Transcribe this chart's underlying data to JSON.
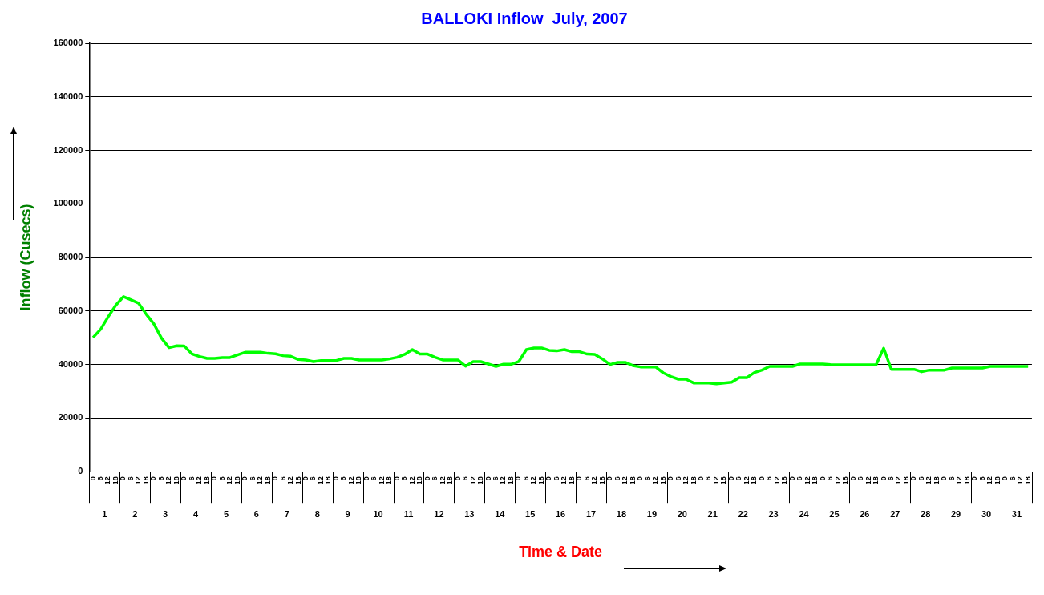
{
  "chart_data": {
    "type": "line",
    "title": "BALLOKI Inflow  July, 2007",
    "xlabel": "Time & Date",
    "ylabel": "Inflow (Cusecs)",
    "categories": [
      "0",
      "6",
      "12",
      "18",
      "0",
      "6",
      "12",
      "18",
      "0",
      "6",
      "12",
      "18",
      "0",
      "6",
      "12",
      "18",
      "0",
      "6",
      "12",
      "18",
      "0",
      "6",
      "12",
      "18",
      "0",
      "6",
      "12",
      "18",
      "0",
      "6",
      "12",
      "18",
      "0",
      "6",
      "12",
      "18",
      "0",
      "6",
      "12",
      "18",
      "0",
      "6",
      "12",
      "18",
      "0",
      "6",
      "12",
      "18",
      "0",
      "6",
      "12",
      "18",
      "0",
      "6",
      "12",
      "18",
      "0",
      "6",
      "12",
      "18",
      "0",
      "6",
      "12",
      "18",
      "0",
      "6",
      "12",
      "18",
      "0",
      "6",
      "12",
      "18",
      "0",
      "6",
      "12",
      "18",
      "0",
      "6",
      "12",
      "18",
      "0",
      "6",
      "12",
      "18",
      "0",
      "6",
      "12",
      "18",
      "0",
      "6",
      "12",
      "18",
      "0",
      "6",
      "12",
      "18",
      "0",
      "6",
      "12",
      "18",
      "0",
      "6",
      "12",
      "18",
      "0",
      "6",
      "12",
      "18",
      "0",
      "6",
      "12",
      "18",
      "0",
      "6",
      "12",
      "18",
      "0",
      "6",
      "12",
      "18",
      "0",
      "6",
      "12",
      "18"
    ],
    "series": [
      {
        "color": "#00ff00",
        "values": [
          50100,
          53200,
          57900,
          62200,
          65400,
          64200,
          62900,
          58800,
          55200,
          49900,
          46300,
          47000,
          46900,
          44000,
          43000,
          42300,
          42300,
          42600,
          42600,
          43600,
          44600,
          44600,
          44600,
          44200,
          44000,
          43300,
          43100,
          41900,
          41700,
          41100,
          41500,
          41500,
          41500,
          42300,
          42300,
          41700,
          41700,
          41700,
          41700,
          42100,
          42700,
          43800,
          45600,
          43900,
          43900,
          42700,
          41700,
          41700,
          41700,
          39400,
          41100,
          41100,
          40200,
          39300,
          40100,
          40100,
          41100,
          45600,
          46200,
          46200,
          45300,
          45100,
          45600,
          44800,
          44800,
          43900,
          43800,
          42100,
          40000,
          40800,
          40800,
          39600,
          39100,
          39100,
          39100,
          36900,
          35500,
          34500,
          34500,
          33100,
          33100,
          33100,
          32800,
          33100,
          33400,
          35100,
          35100,
          37000,
          37900,
          39300,
          39300,
          39300,
          39300,
          40200,
          40200,
          40200,
          40200,
          40000,
          39900,
          39900,
          39900,
          39900,
          39900,
          39900,
          46100,
          38200,
          38200,
          38200,
          38200,
          37300,
          37900,
          37900,
          37900,
          38700,
          38700,
          38700,
          38700,
          38700,
          39300,
          39300,
          39300,
          39300,
          39300,
          39300
        ]
      }
    ],
    "ylim": [
      0,
      160000
    ],
    "yticks": [
      0,
      20000,
      40000,
      60000,
      80000,
      100000,
      120000,
      140000,
      160000
    ],
    "x2lim": [
      0,
      31
    ],
    "x2ticks": [
      {
        "value": 0.5,
        "label": "1"
      },
      {
        "value": 1.5,
        "label": "2"
      },
      {
        "value": 2.5,
        "label": "3"
      },
      {
        "value": 3.5,
        "label": "4"
      },
      {
        "value": 4.5,
        "label": "5"
      },
      {
        "value": 5.5,
        "label": "6"
      },
      {
        "value": 6.5,
        "label": "7"
      },
      {
        "value": 7.5,
        "label": "8"
      },
      {
        "value": 8.5,
        "label": "9"
      },
      {
        "value": 9.5,
        "label": "10"
      },
      {
        "value": 10.5,
        "label": "11"
      },
      {
        "value": 11.5,
        "label": "12"
      },
      {
        "value": 12.5,
        "label": "13"
      },
      {
        "value": 13.5,
        "label": "14"
      },
      {
        "value": 14.5,
        "label": "15"
      },
      {
        "value": 15.5,
        "label": "16"
      },
      {
        "value": 16.5,
        "label": "17"
      },
      {
        "value": 17.5,
        "label": "18"
      },
      {
        "value": 18.5,
        "label": "19"
      },
      {
        "value": 19.5,
        "label": "20"
      },
      {
        "value": 20.5,
        "label": "21"
      },
      {
        "value": 21.5,
        "label": "22"
      },
      {
        "value": 22.5,
        "label": "23"
      },
      {
        "value": 23.5,
        "label": "24"
      },
      {
        "value": 24.5,
        "label": "25"
      },
      {
        "value": 25.5,
        "label": "26"
      },
      {
        "value": 26.5,
        "label": "27"
      },
      {
        "value": 27.5,
        "label": "28"
      },
      {
        "value": 28.5,
        "label": "29"
      },
      {
        "value": 29.5,
        "label": "30"
      },
      {
        "value": 30.5,
        "label": "31"
      }
    ],
    "grid": "y",
    "legend": false,
    "marker": "none",
    "line_style": "solid"
  }
}
